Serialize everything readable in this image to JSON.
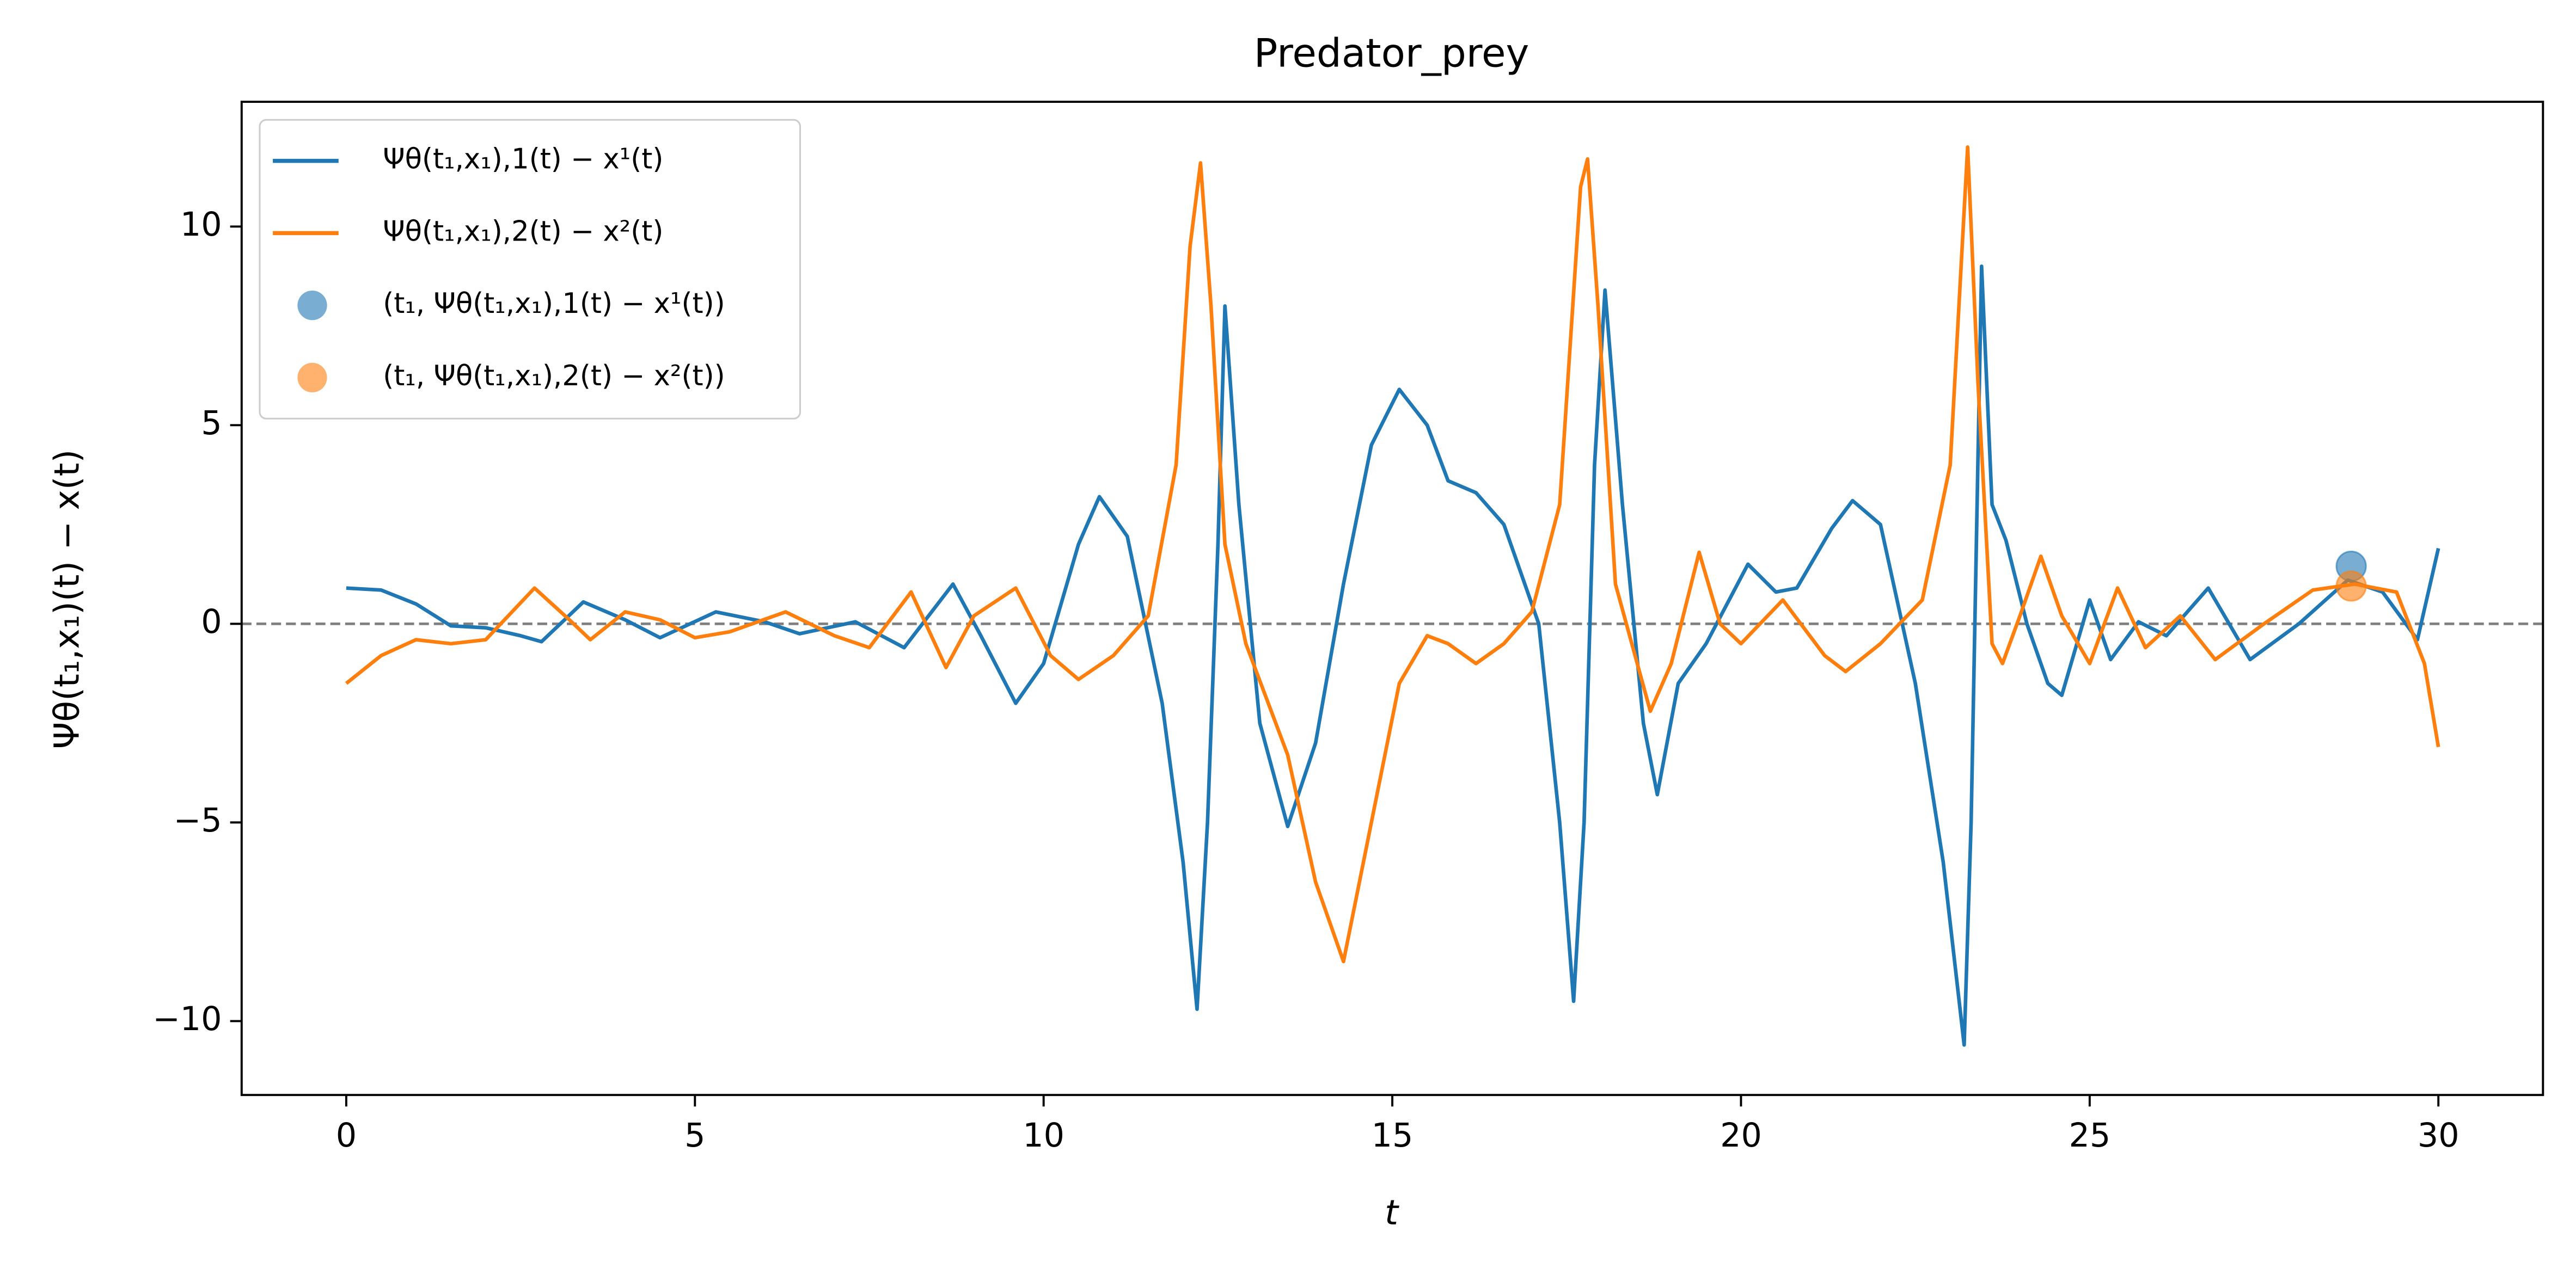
{
  "chart_data": {
    "type": "line",
    "title": "Predator_prey",
    "x_label": "t",
    "y_label": "Ψθ(t₁,x₁)(t) − x(t)",
    "xlim": [
      -1.5,
      31.5
    ],
    "ylim": [
      -11.86,
      13.14
    ],
    "xticks": [
      0,
      5,
      10,
      15,
      20,
      25,
      30
    ],
    "yticks": [
      {
        "value": -10,
        "label": "−10"
      },
      {
        "value": -5,
        "label": "−5"
      },
      0,
      5,
      10
    ],
    "hline": 0,
    "hline_color": "#808080",
    "legend": "upper left",
    "series": [
      {
        "name": "Ψθ(t₁,x₁),1(t) − x¹(t)",
        "color": "#1f77b4",
        "x": [
          0,
          0.5,
          1,
          1.5,
          2,
          2.5,
          2.8,
          3.4,
          4,
          4.5,
          5.3,
          6,
          6.5,
          7.3,
          8,
          8.7,
          9.1,
          9.6,
          10,
          10.5,
          10.8,
          11.2,
          11.7,
          12,
          12.2,
          12.35,
          12.5,
          12.6,
          12.8,
          13.1,
          13.5,
          13.9,
          14.3,
          14.7,
          15.1,
          15.5,
          15.8,
          16.2,
          16.6,
          17.1,
          17.4,
          17.6,
          17.75,
          17.9,
          18.05,
          18.3,
          18.6,
          18.8,
          19.1,
          19.5,
          19.8,
          20.1,
          20.5,
          20.8,
          21.3,
          21.6,
          22,
          22.5,
          22.9,
          23.2,
          23.3,
          23.45,
          23.6,
          23.8,
          24.1,
          24.4,
          24.6,
          25,
          25.3,
          25.7,
          26.1,
          26.7,
          27.3,
          28,
          28.7,
          29.2,
          29.7,
          30
        ],
        "values": [
          0.9,
          0.85,
          0.5,
          -0.05,
          -0.1,
          -0.3,
          -0.45,
          0.55,
          0.1,
          -0.35,
          0.3,
          0.05,
          -0.25,
          0.05,
          -0.6,
          1.0,
          -0.3,
          -2.0,
          -1.0,
          2.0,
          3.2,
          2.2,
          -2.0,
          -6.0,
          -9.7,
          -5,
          2,
          8.0,
          3,
          -2.5,
          -5.1,
          -3.0,
          1,
          4.5,
          5.9,
          5.0,
          3.6,
          3.3,
          2.5,
          0,
          -5,
          -9.5,
          -5,
          4,
          8.4,
          3,
          -2.5,
          -4.3,
          -1.5,
          -0.5,
          0.5,
          1.5,
          0.8,
          0.9,
          2.4,
          3.1,
          2.5,
          -1.5,
          -6,
          -10.6,
          -5,
          9.0,
          3,
          2.1,
          0,
          -1.5,
          -1.8,
          0.6,
          -0.9,
          0.05,
          -0.3,
          0.9,
          -0.9,
          0,
          1.1,
          0.8,
          -0.4,
          1.9
        ]
      },
      {
        "name": "Ψθ(t₁,x₁),2(t) − x²(t)",
        "color": "#ff7f0e",
        "x": [
          0,
          0.5,
          1,
          1.5,
          2,
          2.7,
          3.2,
          3.5,
          4,
          4.5,
          5,
          5.5,
          6.3,
          7,
          7.5,
          8.1,
          8.6,
          9.0,
          9.6,
          10.1,
          10.5,
          11,
          11.5,
          11.9,
          12.1,
          12.25,
          12.4,
          12.6,
          12.9,
          13.5,
          13.9,
          14.3,
          14.7,
          15.1,
          15.5,
          15.8,
          16.2,
          16.6,
          17.0,
          17.4,
          17.7,
          17.8,
          17.95,
          18.2,
          18.7,
          19.0,
          19.4,
          19.7,
          20.0,
          20.6,
          21.2,
          21.5,
          22.0,
          22.6,
          23.0,
          23.25,
          23.4,
          23.6,
          23.75,
          24.0,
          24.3,
          24.6,
          25.0,
          25.4,
          25.8,
          26.3,
          26.8,
          27.5,
          28.2,
          28.8,
          29.4,
          29.8,
          30
        ],
        "values": [
          -1.5,
          -0.8,
          -0.4,
          -0.5,
          -0.4,
          0.9,
          0.1,
          -0.4,
          0.3,
          0.1,
          -0.35,
          -0.2,
          0.3,
          -0.3,
          -0.6,
          0.8,
          -1.1,
          0.2,
          0.9,
          -0.8,
          -1.4,
          -0.8,
          0.2,
          4,
          9.5,
          11.6,
          8,
          2,
          -0.5,
          -3.3,
          -6.5,
          -8.5,
          -5,
          -1.5,
          -0.3,
          -0.5,
          -1.0,
          -0.5,
          0.3,
          3,
          11.0,
          11.7,
          8,
          1,
          -2.2,
          -1,
          1.8,
          0,
          -0.5,
          0.6,
          -0.8,
          -1.2,
          -0.5,
          0.6,
          4,
          12.0,
          6,
          -0.5,
          -1,
          0.2,
          1.7,
          0.2,
          -1.0,
          0.9,
          -0.6,
          0.2,
          -0.9,
          0,
          0.85,
          1.0,
          0.8,
          -1,
          -3.1
        ]
      },
      {
        "name": "(t₁, Ψθ(t₁,x₁),1(t) − x¹(t))",
        "color": "#1f77b4",
        "kind": "scatter",
        "x": [
          28.75
        ],
        "values": [
          1.45
        ]
      },
      {
        "name": "(t₁, Ψθ(t₁,x₁),2(t) − x²(t))",
        "color": "#ff7f0e",
        "kind": "scatter",
        "x": [
          28.75
        ],
        "values": [
          0.95
        ]
      }
    ]
  }
}
